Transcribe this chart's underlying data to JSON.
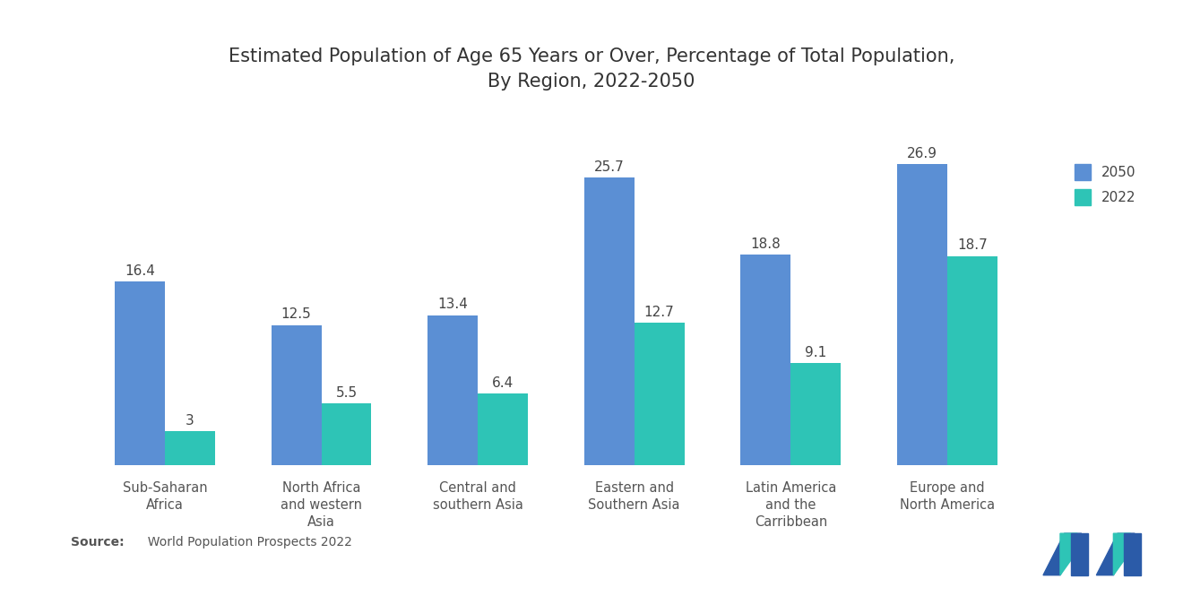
{
  "title": "Estimated Population of Age 65 Years or Over, Percentage of Total Population,\nBy Region, 2022-2050",
  "categories": [
    "Sub-Saharan\nAfrica",
    "North Africa\nand western\nAsia",
    "Central and\nsouthern Asia",
    "Eastern and\nSouthern Asia",
    "Latin America\nand the\nCarribbean",
    "Europe and\nNorth America"
  ],
  "values_2050": [
    16.4,
    12.5,
    13.4,
    25.7,
    18.8,
    26.9
  ],
  "values_2022": [
    3.0,
    5.5,
    6.4,
    12.7,
    9.1,
    18.7
  ],
  "color_2050": "#5B8FD4",
  "color_2022": "#2EC4B6",
  "background_color": "#ffffff",
  "title_fontsize": 15,
  "label_fontsize": 11,
  "tick_fontsize": 10.5,
  "legend_labels": [
    "2050",
    "2022"
  ],
  "source_bold": "Source:",
  "source_rest": "  World Population Prospects 2022",
  "bar_width": 0.32,
  "ylim": [
    0,
    32
  ]
}
